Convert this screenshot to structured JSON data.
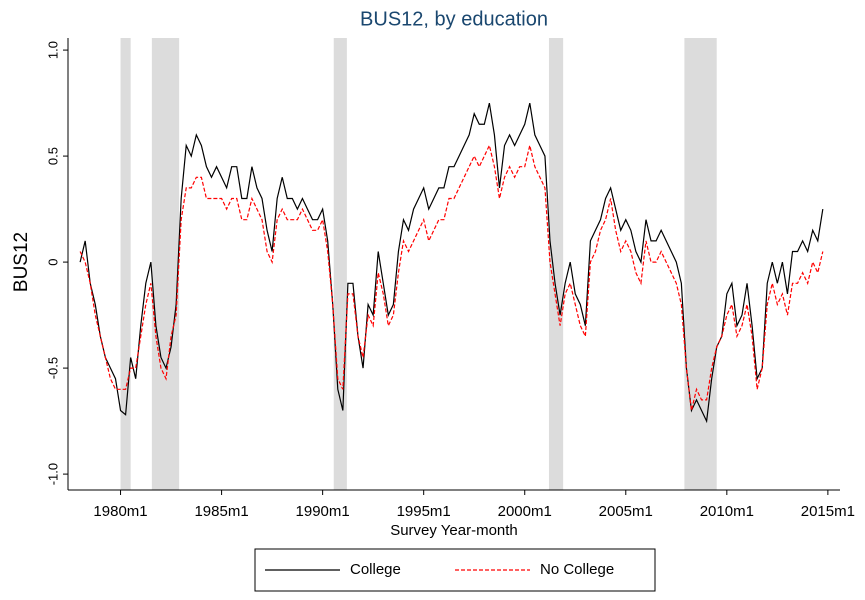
{
  "chart_data": {
    "type": "line",
    "title": "BUS12, by education",
    "x_label": "Survey Year-month",
    "y_label": "BUS12",
    "x": [
      1978,
      1978.25,
      1978.5,
      1978.75,
      1979,
      1979.25,
      1979.5,
      1979.75,
      1980,
      1980.25,
      1980.5,
      1980.75,
      1981,
      1981.25,
      1981.5,
      1981.75,
      1982,
      1982.25,
      1982.5,
      1982.75,
      1983,
      1983.25,
      1983.5,
      1983.75,
      1984,
      1984.25,
      1984.5,
      1984.75,
      1985,
      1985.25,
      1985.5,
      1985.75,
      1986,
      1986.25,
      1986.5,
      1986.75,
      1987,
      1987.25,
      1987.5,
      1987.75,
      1988,
      1988.25,
      1988.5,
      1988.75,
      1989,
      1989.25,
      1989.5,
      1989.75,
      1990,
      1990.25,
      1990.5,
      1990.75,
      1991,
      1991.25,
      1991.5,
      1991.75,
      1992,
      1992.25,
      1992.5,
      1992.75,
      1993,
      1993.25,
      1993.5,
      1993.75,
      1994,
      1994.25,
      1994.5,
      1994.75,
      1995,
      1995.25,
      1995.5,
      1995.75,
      1996,
      1996.25,
      1996.5,
      1996.75,
      1997,
      1997.25,
      1997.5,
      1997.75,
      1998,
      1998.25,
      1998.5,
      1998.75,
      1999,
      1999.25,
      1999.5,
      1999.75,
      2000,
      2000.25,
      2000.5,
      2000.75,
      2001,
      2001.25,
      2001.5,
      2001.75,
      2002,
      2002.25,
      2002.5,
      2002.75,
      2003,
      2003.25,
      2003.5,
      2003.75,
      2004,
      2004.25,
      2004.5,
      2004.75,
      2005,
      2005.25,
      2005.5,
      2005.75,
      2006,
      2006.25,
      2006.5,
      2006.75,
      2007,
      2007.25,
      2007.5,
      2007.75,
      2008,
      2008.25,
      2008.5,
      2008.75,
      2009,
      2009.25,
      2009.5,
      2009.75,
      2010,
      2010.25,
      2010.5,
      2010.75,
      2011,
      2011.25,
      2011.5,
      2011.75,
      2012,
      2012.25,
      2012.5,
      2012.75,
      2013,
      2013.25,
      2013.5,
      2013.75,
      2014,
      2014.25,
      2014.5,
      2014.75
    ],
    "series": [
      {
        "name": "College",
        "color": "#000000",
        "dash": false,
        "values": [
          0.0,
          0.1,
          -0.1,
          -0.2,
          -0.35,
          -0.45,
          -0.5,
          -0.55,
          -0.7,
          -0.72,
          -0.45,
          -0.55,
          -0.3,
          -0.1,
          0.0,
          -0.3,
          -0.45,
          -0.5,
          -0.4,
          -0.2,
          0.3,
          0.55,
          0.5,
          0.6,
          0.55,
          0.45,
          0.4,
          0.45,
          0.4,
          0.35,
          0.45,
          0.45,
          0.3,
          0.3,
          0.45,
          0.35,
          0.3,
          0.15,
          0.05,
          0.3,
          0.4,
          0.3,
          0.3,
          0.25,
          0.3,
          0.25,
          0.2,
          0.2,
          0.25,
          0.1,
          -0.2,
          -0.6,
          -0.7,
          -0.1,
          -0.1,
          -0.35,
          -0.5,
          -0.2,
          -0.25,
          0.05,
          -0.1,
          -0.25,
          -0.2,
          0.05,
          0.2,
          0.15,
          0.25,
          0.3,
          0.35,
          0.25,
          0.3,
          0.35,
          0.35,
          0.45,
          0.45,
          0.5,
          0.55,
          0.6,
          0.7,
          0.65,
          0.65,
          0.75,
          0.6,
          0.35,
          0.55,
          0.6,
          0.55,
          0.6,
          0.65,
          0.75,
          0.6,
          0.55,
          0.5,
          0.1,
          -0.1,
          -0.25,
          -0.1,
          0.0,
          -0.15,
          -0.2,
          -0.3,
          0.1,
          0.15,
          0.2,
          0.3,
          0.35,
          0.25,
          0.15,
          0.2,
          0.15,
          0.05,
          0.0,
          0.2,
          0.1,
          0.1,
          0.15,
          0.1,
          0.05,
          0.0,
          -0.1,
          -0.5,
          -0.7,
          -0.65,
          -0.7,
          -0.75,
          -0.55,
          -0.4,
          -0.35,
          -0.15,
          -0.1,
          -0.3,
          -0.25,
          -0.1,
          -0.3,
          -0.55,
          -0.5,
          -0.1,
          0.0,
          -0.1,
          0.0,
          -0.15,
          0.05,
          0.05,
          0.1,
          0.05,
          0.15,
          0.1,
          0.25
        ]
      },
      {
        "name": "No College",
        "color": "#ff0000",
        "dash": true,
        "values": [
          0.05,
          0.0,
          -0.1,
          -0.25,
          -0.35,
          -0.45,
          -0.55,
          -0.6,
          -0.6,
          -0.6,
          -0.5,
          -0.5,
          -0.35,
          -0.2,
          -0.1,
          -0.35,
          -0.5,
          -0.55,
          -0.35,
          -0.25,
          0.2,
          0.35,
          0.35,
          0.4,
          0.4,
          0.3,
          0.3,
          0.3,
          0.3,
          0.25,
          0.3,
          0.3,
          0.2,
          0.2,
          0.3,
          0.25,
          0.2,
          0.05,
          0.0,
          0.2,
          0.25,
          0.2,
          0.2,
          0.2,
          0.25,
          0.2,
          0.15,
          0.15,
          0.2,
          0.05,
          -0.2,
          -0.55,
          -0.6,
          -0.15,
          -0.15,
          -0.35,
          -0.45,
          -0.25,
          -0.3,
          -0.05,
          -0.15,
          -0.3,
          -0.25,
          -0.05,
          0.1,
          0.05,
          0.1,
          0.15,
          0.2,
          0.1,
          0.15,
          0.2,
          0.2,
          0.3,
          0.3,
          0.35,
          0.4,
          0.45,
          0.5,
          0.45,
          0.5,
          0.55,
          0.45,
          0.3,
          0.4,
          0.45,
          0.4,
          0.45,
          0.45,
          0.55,
          0.45,
          0.4,
          0.35,
          0.0,
          -0.15,
          -0.3,
          -0.15,
          -0.1,
          -0.2,
          -0.3,
          -0.35,
          0.0,
          0.05,
          0.15,
          0.2,
          0.3,
          0.15,
          0.05,
          0.1,
          0.05,
          -0.05,
          -0.1,
          0.1,
          0.0,
          0.0,
          0.05,
          0.0,
          -0.05,
          -0.1,
          -0.2,
          -0.5,
          -0.7,
          -0.6,
          -0.65,
          -0.65,
          -0.5,
          -0.4,
          -0.35,
          -0.25,
          -0.2,
          -0.35,
          -0.3,
          -0.2,
          -0.35,
          -0.6,
          -0.5,
          -0.2,
          -0.1,
          -0.2,
          -0.15,
          -0.25,
          -0.1,
          -0.1,
          -0.05,
          -0.1,
          0.0,
          -0.05,
          0.05
        ]
      }
    ],
    "recessions": [
      [
        1980.0,
        1980.5
      ],
      [
        1981.55,
        1982.9
      ],
      [
        1990.55,
        1991.2
      ],
      [
        2001.2,
        2001.9
      ],
      [
        2007.9,
        2009.5
      ]
    ],
    "recession_color": "#dcdcdc",
    "xlim": [
      1977.4,
      2015.6
    ],
    "ylim": [
      -1.075,
      1.057
    ],
    "xticks": [
      {
        "value": 1980,
        "label": "1980m1"
      },
      {
        "value": 1985,
        "label": "1985m1"
      },
      {
        "value": 1990,
        "label": "1990m1"
      },
      {
        "value": 1995,
        "label": "1995m1"
      },
      {
        "value": 2000,
        "label": "2000m1"
      },
      {
        "value": 2005,
        "label": "2005m1"
      },
      {
        "value": 2010,
        "label": "2010m1"
      },
      {
        "value": 2015,
        "label": "2015m1"
      }
    ],
    "yticks": [
      {
        "value": -1,
        "label": "-1.0"
      },
      -0.5,
      0,
      0.5,
      {
        "value": 1,
        "label": "1.0"
      }
    ],
    "grid": false,
    "legend": "bottom"
  }
}
